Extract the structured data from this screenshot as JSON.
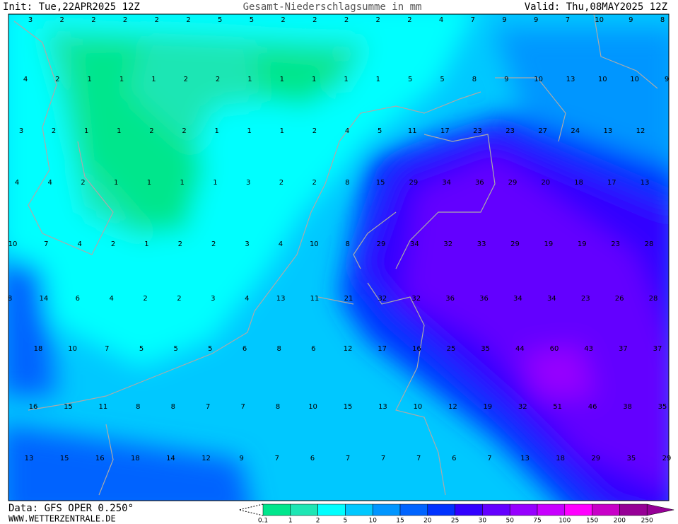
{
  "header": {
    "init": "Init: Tue,22APR2025 12Z",
    "title": "Gesamt-Niederschlagsumme in mm",
    "valid": "Valid: Thu,08MAY2025 12Z"
  },
  "footer": {
    "data": "Data: GFS OPER 0.250°",
    "site": "WWW.WETTERZENTRALE.DE"
  },
  "legend": {
    "levels": [
      0.1,
      1,
      2,
      5,
      10,
      15,
      20,
      25,
      30,
      50,
      75,
      100,
      150,
      200,
      250
    ],
    "colors": [
      "#00e68c",
      "#1ee6b4",
      "#00ffff",
      "#00c8ff",
      "#0096ff",
      "#0064ff",
      "#0032ff",
      "#3200ff",
      "#6400ff",
      "#9600ff",
      "#c800ff",
      "#ff00ff",
      "#c800c8",
      "#960096"
    ]
  },
  "grid_values": [
    [
      3,
      2,
      2,
      2,
      2,
      2,
      5,
      5,
      2,
      2,
      2,
      2,
      2,
      4,
      7,
      9,
      9,
      7,
      10,
      9,
      8
    ],
    [
      4,
      2,
      1,
      1,
      1,
      2,
      2,
      1,
      1,
      1,
      1,
      1,
      5,
      5,
      8,
      9,
      10,
      13,
      10,
      10,
      9
    ],
    [
      3,
      2,
      1,
      1,
      2,
      2,
      1,
      1,
      1,
      2,
      4,
      5,
      11,
      17,
      23,
      23,
      27,
      24,
      13,
      12
    ],
    [
      4,
      4,
      2,
      1,
      1,
      1,
      1,
      3,
      2,
      2,
      8,
      15,
      29,
      34,
      36,
      29,
      20,
      18,
      17,
      13
    ],
    [
      10,
      7,
      4,
      2,
      1,
      2,
      2,
      3,
      4,
      10,
      8,
      29,
      34,
      32,
      33,
      29,
      19,
      19,
      23,
      28
    ],
    [
      8,
      14,
      6,
      4,
      2,
      2,
      3,
      4,
      13,
      11,
      21,
      32,
      32,
      36,
      36,
      34,
      34,
      23,
      26,
      28
    ],
    [
      18,
      10,
      7,
      5,
      5,
      5,
      6,
      8,
      6,
      12,
      17,
      16,
      25,
      35,
      44,
      60,
      43,
      37,
      37
    ],
    [
      16,
      15,
      11,
      8,
      8,
      7,
      7,
      8,
      10,
      15,
      13,
      10,
      12,
      19,
      32,
      51,
      46,
      38,
      35
    ],
    [
      13,
      15,
      16,
      18,
      14,
      12,
      9,
      7,
      6,
      7,
      7,
      7,
      6,
      7,
      13,
      18,
      29,
      35,
      29
    ]
  ]
}
